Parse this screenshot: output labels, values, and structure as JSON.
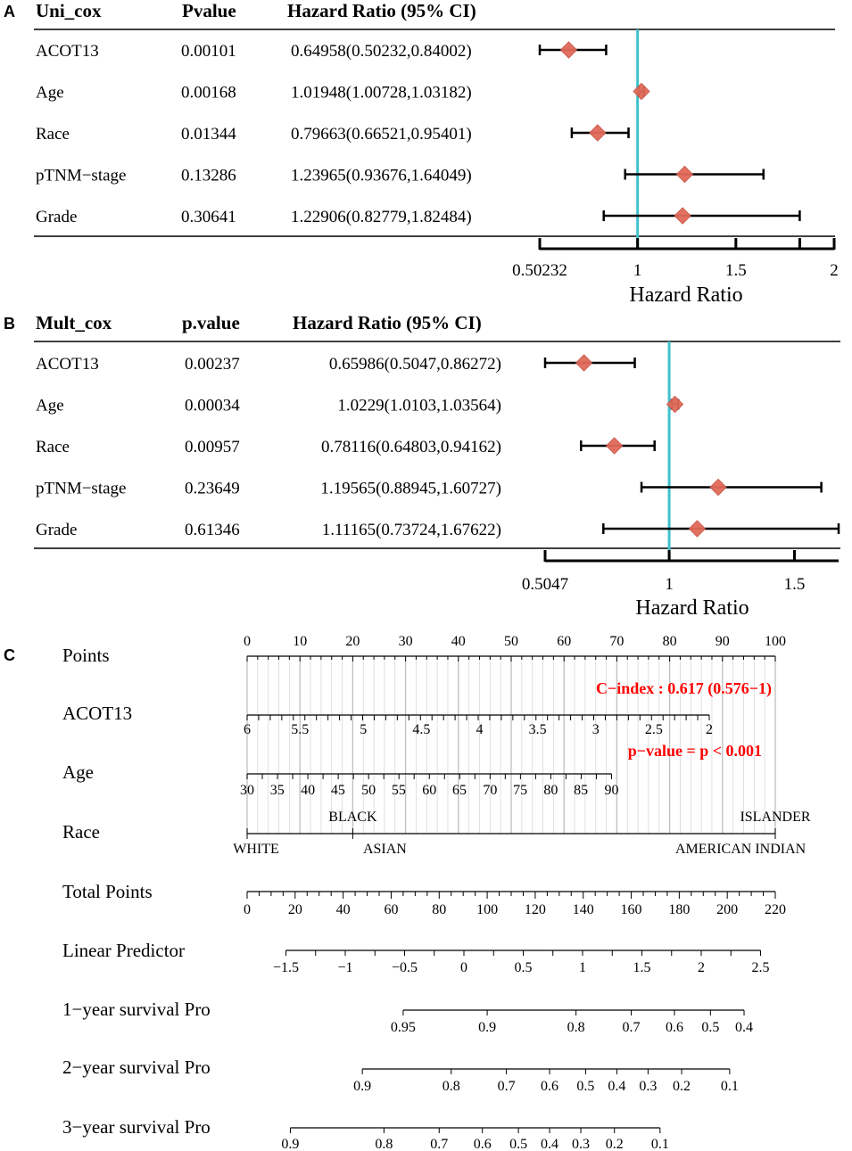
{
  "colors": {
    "ref_line": "#3FC1CC",
    "marker": "#E26A5A",
    "marker_stroke": "#C9574A",
    "text": "#000000",
    "red_text": "#FF0000",
    "grid": "#D9D9D9",
    "grid_major": "#BFBFBF"
  },
  "chart_data": [
    {
      "type": "forest",
      "panel_letter": "A",
      "title": "Uni_cox",
      "pvalue_header": "Pvalue",
      "ci_header": "Hazard Ratio (95% CI)",
      "xlabel": "Hazard Ratio",
      "ref_value": 1,
      "xlim": [
        0.50232,
        2
      ],
      "ticks": [
        0.50232,
        1,
        1.5,
        1.82484,
        2
      ],
      "tick_labels": [
        "0.50232",
        "1",
        "1.5",
        "2"
      ],
      "tick_label_values": [
        0.50232,
        1,
        1.5,
        2
      ],
      "rows": [
        {
          "label": "ACOT13",
          "p": "0.00101",
          "ci_text": "0.64958(0.50232,0.84002)",
          "hr": 0.64958,
          "low": 0.50232,
          "high": 0.84002
        },
        {
          "label": "Age",
          "p": "0.00168",
          "ci_text": "1.01948(1.00728,1.03182)",
          "hr": 1.01948,
          "low": 1.00728,
          "high": 1.03182
        },
        {
          "label": "Race",
          "p": "0.01344",
          "ci_text": "0.79663(0.66521,0.95401)",
          "hr": 0.79663,
          "low": 0.66521,
          "high": 0.95401
        },
        {
          "label": "pTNM−stage",
          "p": "0.13286",
          "ci_text": "1.23965(0.93676,1.64049)",
          "hr": 1.23965,
          "low": 0.93676,
          "high": 1.64049
        },
        {
          "label": "Grade",
          "p": "0.30641",
          "ci_text": "1.22906(0.82779,1.82484)",
          "hr": 1.22906,
          "low": 0.82779,
          "high": 1.82484
        }
      ]
    },
    {
      "type": "forest",
      "panel_letter": "B",
      "title": "Mult_cox",
      "pvalue_header": "p.value",
      "ci_header": "Hazard Ratio (95% CI)",
      "xlabel": "Hazard Ratio",
      "ref_value": 1,
      "xlim": [
        0.5047,
        1.67622
      ],
      "ticks": [
        0.5047,
        1,
        1.5
      ],
      "tick_labels": [
        "0.5047",
        "1",
        "1.5"
      ],
      "tick_label_values": [
        0.5047,
        1,
        1.5
      ],
      "rows": [
        {
          "label": "ACOT13",
          "p": "0.00237",
          "ci_text": "0.65986(0.5047,0.86272)",
          "hr": 0.65986,
          "low": 0.5047,
          "high": 0.86272
        },
        {
          "label": "Age",
          "p": "0.00034",
          "ci_text": "1.0229(1.0103,1.03564)",
          "hr": 1.0229,
          "low": 1.0103,
          "high": 1.03564
        },
        {
          "label": "Race",
          "p": "0.00957",
          "ci_text": "0.78116(0.64803,0.94162)",
          "hr": 0.78116,
          "low": 0.64803,
          "high": 0.94162
        },
        {
          "label": "pTNM−stage",
          "p": "0.23649",
          "ci_text": "1.19565(0.88945,1.60727)",
          "hr": 1.19565,
          "low": 0.88945,
          "high": 1.60727
        },
        {
          "label": "Grade",
          "p": "0.61346",
          "ci_text": "1.11165(0.73724,1.67622)",
          "hr": 1.11165,
          "low": 0.73724,
          "high": 1.67622
        }
      ]
    },
    {
      "type": "nomogram",
      "panel_letter": "C",
      "points_range": [
        0,
        100
      ],
      "annotations": {
        "c_index": "C−index : 0.617 (0.576−1)",
        "p_value": "p−value = p < 0.001"
      },
      "scales": [
        {
          "name": "Points",
          "kind": "points",
          "ticks": [
            {
              "label": "0",
              "pts": 0
            },
            {
              "label": "10",
              "pts": 10
            },
            {
              "label": "20",
              "pts": 20
            },
            {
              "label": "30",
              "pts": 30
            },
            {
              "label": "40",
              "pts": 40
            },
            {
              "label": "50",
              "pts": 50
            },
            {
              "label": "60",
              "pts": 60
            },
            {
              "label": "70",
              "pts": 70
            },
            {
              "label": "80",
              "pts": 80
            },
            {
              "label": "90",
              "pts": 90
            },
            {
              "label": "100",
              "pts": 100
            }
          ]
        },
        {
          "name": "ACOT13",
          "kind": "below",
          "ticks": [
            {
              "label": "6",
              "pts": 0
            },
            {
              "label": "5.5",
              "pts": 10
            },
            {
              "label": "5",
              "pts": 22
            },
            {
              "label": "4.5",
              "pts": 33
            },
            {
              "label": "4",
              "pts": 44
            },
            {
              "label": "3.5",
              "pts": 55
            },
            {
              "label": "3",
              "pts": 66
            },
            {
              "label": "2.5",
              "pts": 77
            },
            {
              "label": "2",
              "pts": 87.5
            }
          ]
        },
        {
          "name": "Age",
          "kind": "below",
          "ticks": [
            {
              "label": "30",
              "pts": 0
            },
            {
              "label": "35",
              "pts": 5.7
            },
            {
              "label": "40",
              "pts": 11.5
            },
            {
              "label": "45",
              "pts": 17.2
            },
            {
              "label": "50",
              "pts": 23
            },
            {
              "label": "55",
              "pts": 28.7
            },
            {
              "label": "60",
              "pts": 34.5
            },
            {
              "label": "65",
              "pts": 40.2
            },
            {
              "label": "70",
              "pts": 46
            },
            {
              "label": "75",
              "pts": 51.7
            },
            {
              "label": "80",
              "pts": 57.5
            },
            {
              "label": "85",
              "pts": 63.2
            },
            {
              "label": "90",
              "pts": 69
            }
          ]
        },
        {
          "name": "Race",
          "kind": "race",
          "ticks": [
            {
              "label": "WHITE",
              "pts": 0,
              "pos": "below"
            },
            {
              "label": "BLACK",
              "pts": 20,
              "pos": "above"
            },
            {
              "label": "ASIAN",
              "pts": 20,
              "pos": "below"
            },
            {
              "label": "ISLANDER",
              "pts": 100,
              "pos": "above"
            },
            {
              "label": "AMERICAN INDIAN",
              "pts": 100,
              "pos": "below"
            }
          ]
        },
        {
          "name": "Total Points",
          "kind": "total",
          "ticks": [
            {
              "label": "0",
              "v": 0
            },
            {
              "label": "20",
              "v": 20
            },
            {
              "label": "40",
              "v": 40
            },
            {
              "label": "60",
              "v": 60
            },
            {
              "label": "80",
              "v": 80
            },
            {
              "label": "100",
              "v": 100
            },
            {
              "label": "120",
              "v": 120
            },
            {
              "label": "140",
              "v": 140
            },
            {
              "label": "160",
              "v": 160
            },
            {
              "label": "180",
              "v": 180
            },
            {
              "label": "200",
              "v": 200
            },
            {
              "label": "220",
              "v": 220
            }
          ]
        },
        {
          "name": "Linear Predictor",
          "kind": "lp",
          "ticks": [
            {
              "label": "−1.5",
              "v": -1.5
            },
            {
              "label": "−1",
              "v": -1
            },
            {
              "label": "−0.5",
              "v": -0.5
            },
            {
              "label": "0",
              "v": 0
            },
            {
              "label": "0.5",
              "v": 0.5
            },
            {
              "label": "1",
              "v": 1
            },
            {
              "label": "1.5",
              "v": 1.5
            },
            {
              "label": "2",
              "v": 2
            },
            {
              "label": "2.5",
              "v": 2.5
            }
          ]
        },
        {
          "name": "1−year survival Pro",
          "kind": "surv",
          "ticks": [
            {
              "label": "0.95",
              "tp": 65
            },
            {
              "label": "0.9",
              "tp": 100
            },
            {
              "label": "0.8",
              "tp": 137
            },
            {
              "label": "0.7",
              "tp": 160
            },
            {
              "label": "0.6",
              "tp": 178
            },
            {
              "label": "0.5",
              "tp": 193
            },
            {
              "label": "0.4",
              "tp": 207
            }
          ]
        },
        {
          "name": "2−year survival Pro",
          "kind": "surv",
          "ticks": [
            {
              "label": "0.9",
              "tp": 48
            },
            {
              "label": "0.8",
              "tp": 85
            },
            {
              "label": "0.7",
              "tp": 108
            },
            {
              "label": "0.6",
              "tp": 126
            },
            {
              "label": "0.5",
              "tp": 141
            },
            {
              "label": "0.4",
              "tp": 154
            },
            {
              "label": "0.3",
              "tp": 167
            },
            {
              "label": "0.2",
              "tp": 181
            },
            {
              "label": "0.1",
              "tp": 201
            }
          ]
        },
        {
          "name": "3−year survival Pro",
          "kind": "surv",
          "ticks": [
            {
              "label": "0.9",
              "tp": 18
            },
            {
              "label": "0.8",
              "tp": 57
            },
            {
              "label": "0.7",
              "tp": 80
            },
            {
              "label": "0.6",
              "tp": 98
            },
            {
              "label": "0.5",
              "tp": 113
            },
            {
              "label": "0.4",
              "tp": 126
            },
            {
              "label": "0.3",
              "tp": 139
            },
            {
              "label": "0.2",
              "tp": 153
            },
            {
              "label": "0.1",
              "tp": 172
            }
          ]
        }
      ]
    }
  ]
}
